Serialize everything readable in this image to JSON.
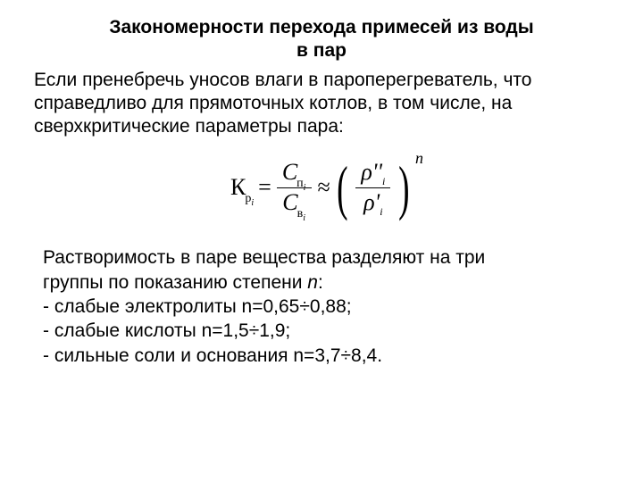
{
  "title_line1": "Закономерности перехода примесей из воды",
  "title_line2": "в пар",
  "paragraph1": "Если пренебречь уносов влаги в пароперегреватель, что справедливо для прямоточных котлов, в том числе, на сверхкритические параметры пара:",
  "formula": {
    "K": "К",
    "K_sub": "р",
    "K_sub_i": "i",
    "eq": "=",
    "Cp": "C",
    "Cp_sub": "п",
    "Cp_sub_i": "i",
    "Cv": "C",
    "Cv_sub": "в",
    "Cv_sub_i": "i",
    "approx": "≈",
    "rho_top": "ρ''",
    "rho_top_sub": "i",
    "rho_bot": "ρ'",
    "rho_bot_sub": "i",
    "exp": "n"
  },
  "paragraph2_l1": "Растворимость в паре вещества разделяют на три",
  "paragraph2_l2_a": "группы по показанию степени ",
  "paragraph2_l2_n": "n",
  "paragraph2_l2_b": ":",
  "bullet1": "- слабые электролиты n=0,65÷0,88;",
  "bullet2": "- слабые кислоты n=1,5÷1,9;",
  "bullet3": "- сильные соли и основания n=3,7÷8,4."
}
